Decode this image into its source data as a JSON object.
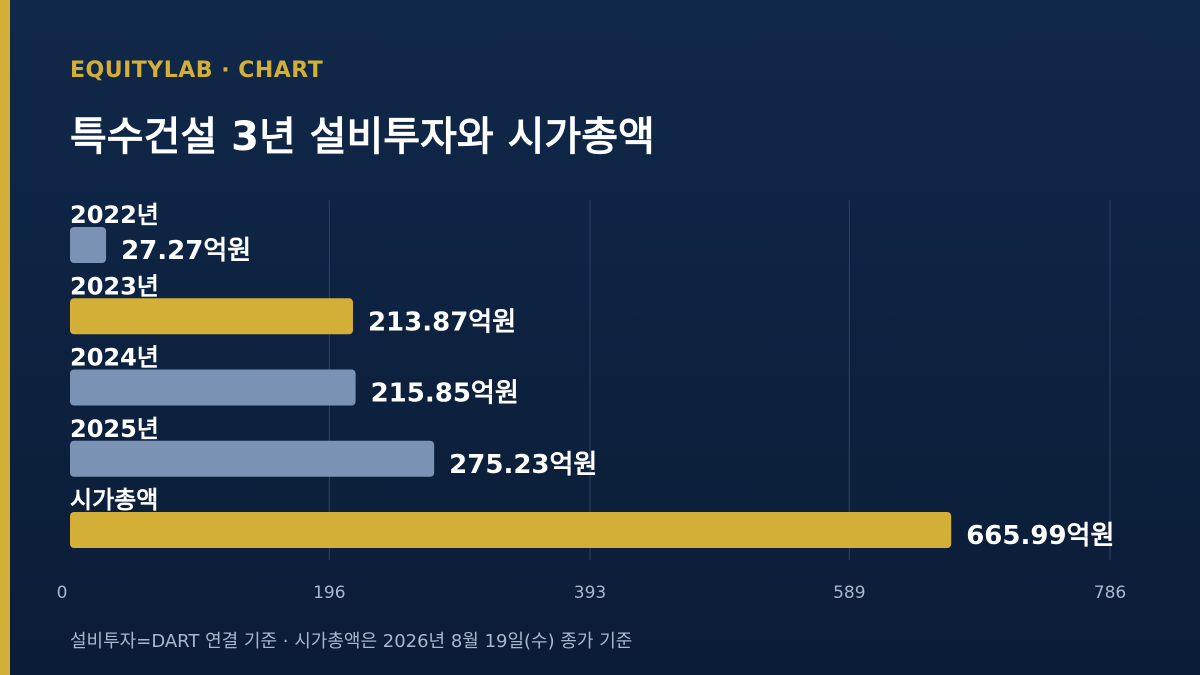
{
  "header": {
    "brand": "EQUITYLAB · CHART",
    "title": "특수건설 3년 설비투자와 시가총액"
  },
  "footer": {
    "note": "설비투자=DART 연결 기준 · 시가총액은 2026년 8월 19일(수) 종가 기준"
  },
  "colors": {
    "background": "#0f2748",
    "accent": "#d4af37",
    "bar_gray": "#7a93b5",
    "bar_gold": "#d4af37",
    "grid": "#2b4466",
    "tick_text": "#a9b7cc"
  },
  "chart_data": {
    "type": "bar",
    "orientation": "horizontal",
    "categories": [
      "2022년",
      "2023년",
      "2024년",
      "2025년",
      "시가총액"
    ],
    "values": [
      27.27,
      213.87,
      215.85,
      275.23,
      665.99
    ],
    "value_labels": [
      "27.27억원",
      "213.87억원",
      "215.85억원",
      "275.23억원",
      "665.99억원"
    ],
    "bar_colors": [
      "#7a93b5",
      "#d4af37",
      "#7a93b5",
      "#7a93b5",
      "#d4af37"
    ],
    "xlim": [
      0,
      786
    ],
    "xticks": [
      0,
      196,
      393,
      589,
      786
    ],
    "grid": true
  }
}
